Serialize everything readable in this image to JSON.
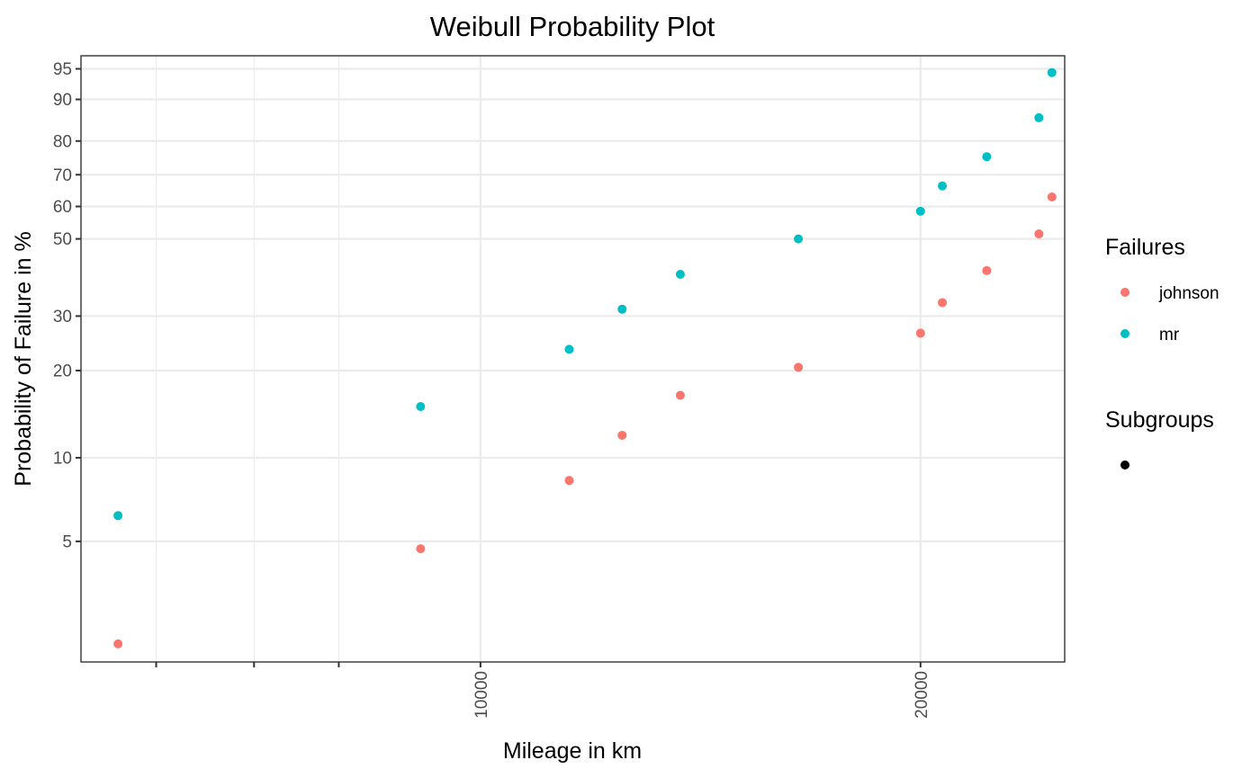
{
  "chart_data": {
    "type": "scatter",
    "title": "Weibull Probability Plot",
    "xlabel": "Mileage in km",
    "ylabel": "Probability of Failure in %",
    "x_scale": "log",
    "y_scale": "weibull",
    "xlim": [
      5330,
      25100
    ],
    "ylim": [
      1.8,
      96.5
    ],
    "x_ticks": [
      10000,
      20000
    ],
    "x_tick_labels": [
      "10000",
      "20000"
    ],
    "x_minor_ticks": [
      6000,
      7000,
      8000
    ],
    "y_ticks": [
      5,
      10,
      20,
      30,
      50,
      60,
      70,
      80,
      90,
      95
    ],
    "y_tick_labels": [
      "5",
      "10",
      "20",
      "30",
      "50",
      "60",
      "70",
      "80",
      "90",
      "95"
    ],
    "grid": true,
    "legend_position": "right",
    "legend": {
      "failures_title": "Failures",
      "subgroups_title": "Subgroups"
    },
    "series": [
      {
        "name": "johnson",
        "color": "#F8766D",
        "points": [
          {
            "x": 5650,
            "y": 2.1
          },
          {
            "x": 9100,
            "y": 4.7
          },
          {
            "x": 11500,
            "y": 8.3
          },
          {
            "x": 12500,
            "y": 12
          },
          {
            "x": 13700,
            "y": 16.5
          },
          {
            "x": 16500,
            "y": 20.5
          },
          {
            "x": 20000,
            "y": 26.5
          },
          {
            "x": 20700,
            "y": 33
          },
          {
            "x": 22200,
            "y": 41
          },
          {
            "x": 24100,
            "y": 51.5
          },
          {
            "x": 24600,
            "y": 63
          }
        ]
      },
      {
        "name": "mr",
        "color": "#00BFC4",
        "points": [
          {
            "x": 5650,
            "y": 6.2
          },
          {
            "x": 9100,
            "y": 15.1
          },
          {
            "x": 11500,
            "y": 23.5
          },
          {
            "x": 12500,
            "y": 31.5
          },
          {
            "x": 13700,
            "y": 40
          },
          {
            "x": 16500,
            "y": 50
          },
          {
            "x": 20000,
            "y": 58.5
          },
          {
            "x": 20700,
            "y": 66.5
          },
          {
            "x": 22200,
            "y": 75.5
          },
          {
            "x": 24100,
            "y": 86
          },
          {
            "x": 24600,
            "y": 94.5
          }
        ]
      }
    ]
  }
}
